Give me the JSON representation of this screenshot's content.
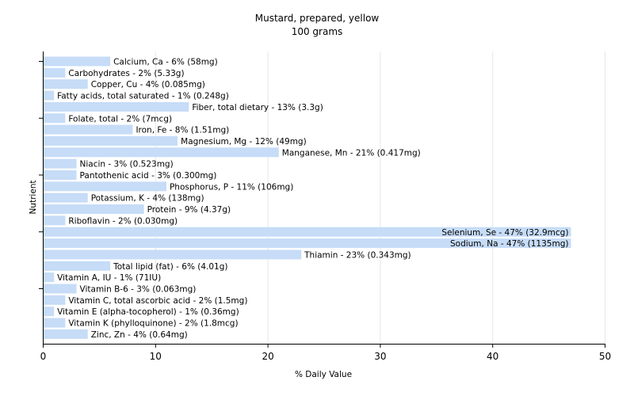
{
  "chart_data": {
    "type": "bar",
    "orientation": "horizontal",
    "title": "Mustard, prepared, yellow",
    "subtitle": "100 grams",
    "xlabel": "% Daily Value",
    "ylabel": "Nutrient",
    "xlim": [
      0,
      50
    ],
    "xticks": [
      0,
      10,
      20,
      30,
      40,
      50
    ],
    "grid": true,
    "bar_color": "#c6dcf7",
    "categories": [
      "Calcium, Ca",
      "Carbohydrates",
      "Copper, Cu",
      "Fatty acids, total saturated",
      "Fiber, total dietary",
      "Folate, total",
      "Iron, Fe",
      "Magnesium, Mg",
      "Manganese, Mn",
      "Niacin",
      "Pantothenic acid",
      "Phosphorus, P",
      "Potassium, K",
      "Protein",
      "Riboflavin",
      "Selenium, Se",
      "Sodium, Na",
      "Thiamin",
      "Total lipid (fat)",
      "Vitamin A, IU",
      "Vitamin B-6",
      "Vitamin C, total ascorbic acid",
      "Vitamin E (alpha-tocopherol)",
      "Vitamin K (phylloquinone)",
      "Zinc, Zn"
    ],
    "values": [
      6,
      2,
      4,
      1,
      13,
      2,
      8,
      12,
      21,
      3,
      3,
      11,
      4,
      9,
      2,
      47,
      47,
      23,
      6,
      1,
      3,
      2,
      1,
      2,
      4
    ],
    "labels": [
      "Calcium, Ca - 6% (58mg)",
      "Carbohydrates - 2% (5.33g)",
      "Copper, Cu - 4% (0.085mg)",
      "Fatty acids, total saturated - 1% (0.248g)",
      "Fiber, total dietary - 13% (3.3g)",
      "Folate, total - 2% (7mcg)",
      "Iron, Fe - 8% (1.51mg)",
      "Magnesium, Mg - 12% (49mg)",
      "Manganese, Mn - 21% (0.417mg)",
      "Niacin - 3% (0.523mg)",
      "Pantothenic acid - 3% (0.300mg)",
      "Phosphorus, P - 11% (106mg)",
      "Potassium, K - 4% (138mg)",
      "Protein - 9% (4.37g)",
      "Riboflavin - 2% (0.030mg)",
      "Selenium, Se - 47% (32.9mcg)",
      "Sodium, Na - 47% (1135mg)",
      "Thiamin - 23% (0.343mg)",
      "Total lipid (fat) - 6% (4.01g)",
      "Vitamin A, IU - 1% (71IU)",
      "Vitamin B-6 - 3% (0.063mg)",
      "Vitamin C, total ascorbic acid - 2% (1.5mg)",
      "Vitamin E (alpha-tocopherol) - 1% (0.36mg)",
      "Vitamin K (phylloquinone) - 2% (1.8mcg)",
      "Zinc, Zn - 4% (0.64mg)"
    ]
  }
}
